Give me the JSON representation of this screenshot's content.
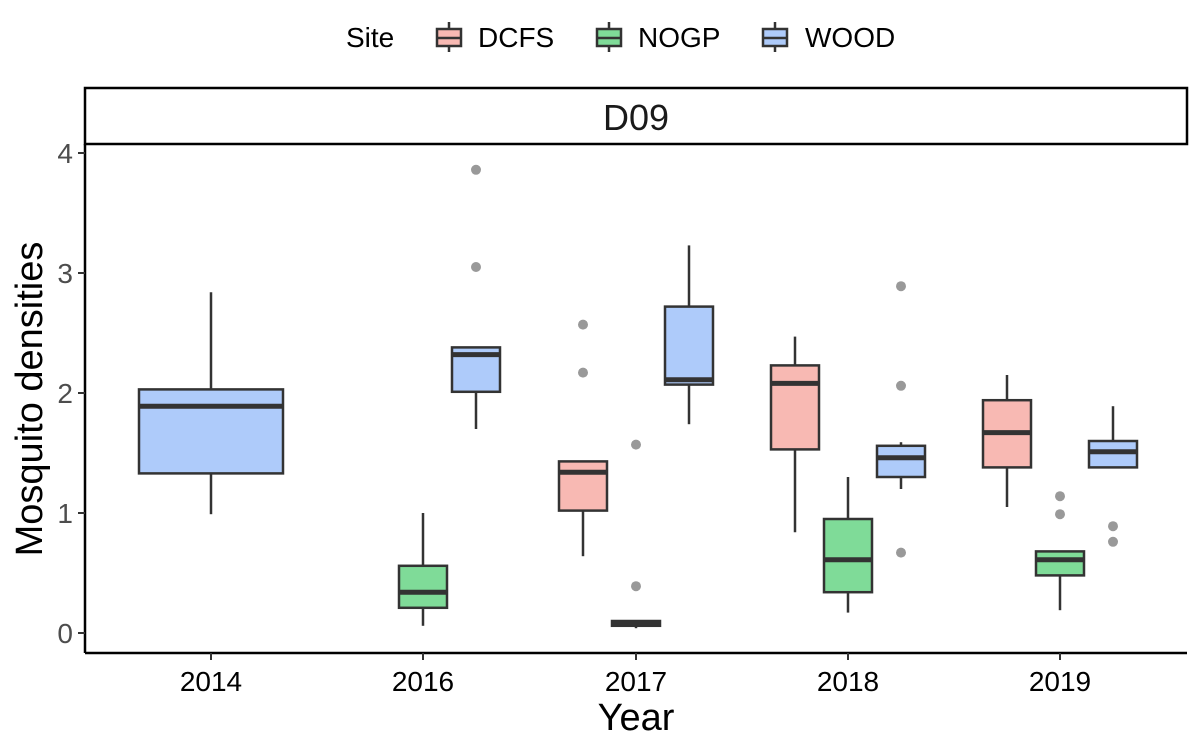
{
  "chart_data": {
    "type": "boxplot",
    "facet": "D09",
    "xlabel": "Year",
    "ylabel": "Mosquito densities",
    "ylim": [
      -0.15,
      4.05
    ],
    "yticks": [
      0,
      1,
      2,
      3,
      4
    ],
    "categories": [
      "2014",
      "2016",
      "2017",
      "2018",
      "2019"
    ],
    "legend": {
      "title": "Site",
      "position": "top",
      "entries": [
        "DCFS",
        "NOGP",
        "WOOD"
      ]
    },
    "grid": false,
    "colors": {
      "DCFS": "#f8b9b3",
      "NOGP": "#7fdb98",
      "WOOD": "#aecbfa",
      "outline": "#333333",
      "outlier": "#999999"
    },
    "boxes": [
      {
        "category": "2014",
        "site": "WOOD",
        "min": 0.99,
        "q1": 1.33,
        "median": 1.89,
        "q3": 2.03,
        "max": 2.84,
        "outliers": []
      },
      {
        "category": "2016",
        "site": "NOGP",
        "min": 0.06,
        "q1": 0.21,
        "median": 0.34,
        "q3": 0.56,
        "max": 1.0,
        "outliers": []
      },
      {
        "category": "2016",
        "site": "WOOD",
        "min": 1.7,
        "q1": 2.01,
        "median": 2.32,
        "q3": 2.38,
        "max": 2.38,
        "outliers": [
          3.05,
          3.86
        ]
      },
      {
        "category": "2017",
        "site": "DCFS",
        "min": 0.64,
        "q1": 1.02,
        "median": 1.34,
        "q3": 1.43,
        "max": 1.43,
        "outliers": [
          2.17,
          2.57
        ]
      },
      {
        "category": "2017",
        "site": "NOGP",
        "min": 0.04,
        "q1": 0.06,
        "median": 0.08,
        "q3": 0.1,
        "max": 0.1,
        "outliers": [
          0.39,
          1.57
        ]
      },
      {
        "category": "2017",
        "site": "WOOD",
        "min": 1.74,
        "q1": 2.07,
        "median": 2.11,
        "q3": 2.72,
        "max": 3.23,
        "outliers": []
      },
      {
        "category": "2018",
        "site": "DCFS",
        "min": 0.84,
        "q1": 1.53,
        "median": 2.08,
        "q3": 2.23,
        "max": 2.47,
        "outliers": []
      },
      {
        "category": "2018",
        "site": "NOGP",
        "min": 0.17,
        "q1": 0.34,
        "median": 0.61,
        "q3": 0.95,
        "max": 1.3,
        "outliers": []
      },
      {
        "category": "2018",
        "site": "WOOD",
        "min": 1.2,
        "q1": 1.3,
        "median": 1.46,
        "q3": 1.56,
        "max": 1.59,
        "outliers": [
          0.67,
          2.06,
          2.89
        ]
      },
      {
        "category": "2019",
        "site": "DCFS",
        "min": 1.05,
        "q1": 1.38,
        "median": 1.67,
        "q3": 1.94,
        "max": 2.15,
        "outliers": []
      },
      {
        "category": "2019",
        "site": "NOGP",
        "min": 0.19,
        "q1": 0.48,
        "median": 0.61,
        "q3": 0.68,
        "max": 0.68,
        "outliers": [
          0.99,
          1.14
        ]
      },
      {
        "category": "2019",
        "site": "WOOD",
        "min": 1.38,
        "q1": 1.38,
        "median": 1.51,
        "q3": 1.6,
        "max": 1.89,
        "outliers": [
          0.76,
          0.89
        ]
      }
    ]
  }
}
